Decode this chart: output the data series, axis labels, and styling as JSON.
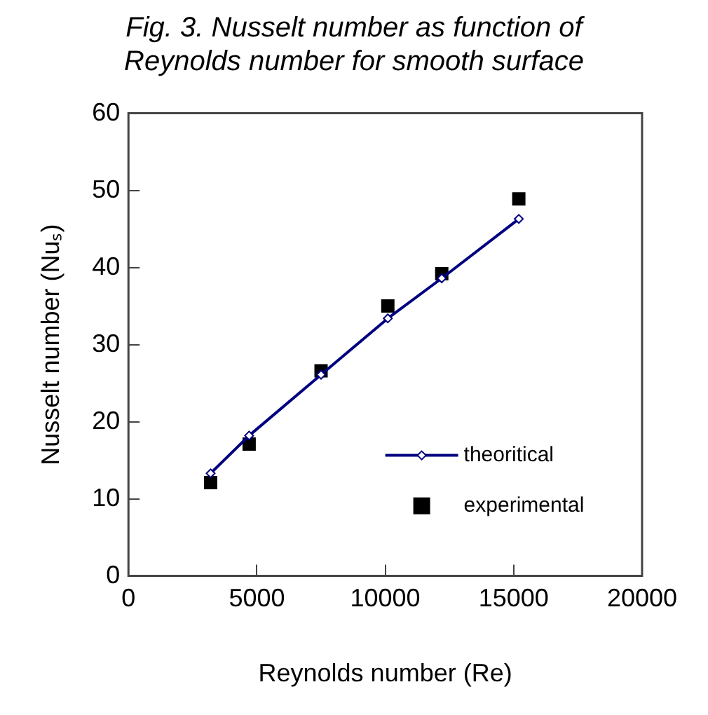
{
  "chart_data": {
    "type": "line",
    "title": "Fig. 3. Nusselt number as function of Reynolds number for smooth surface",
    "xlabel": "Reynolds number (Re)",
    "ylabel": "Nusselt number (Nuₛ)",
    "xlim": [
      0,
      20000
    ],
    "xticks": [
      0,
      5000,
      10000,
      15000,
      20000
    ],
    "ylim": [
      0,
      60
    ],
    "yticks": [
      0,
      10,
      20,
      30,
      40,
      50,
      60
    ],
    "grid": false,
    "legend": "bottom right",
    "series": [
      {
        "name": "theoritical",
        "color": "#000080",
        "marker": "diamond",
        "x": [
          3200,
          4700,
          7500,
          10100,
          12200,
          15200
        ],
        "values": [
          13.3,
          18.2,
          26.1,
          33.4,
          38.6,
          46.3
        ]
      },
      {
        "name": "experimental",
        "type": "scatter",
        "color": "#000000",
        "marker": "square",
        "x": [
          3200,
          4700,
          7500,
          10100,
          12200,
          15200
        ],
        "values": [
          12.1,
          17.1,
          26.6,
          35.0,
          39.2,
          48.9
        ]
      }
    ]
  }
}
